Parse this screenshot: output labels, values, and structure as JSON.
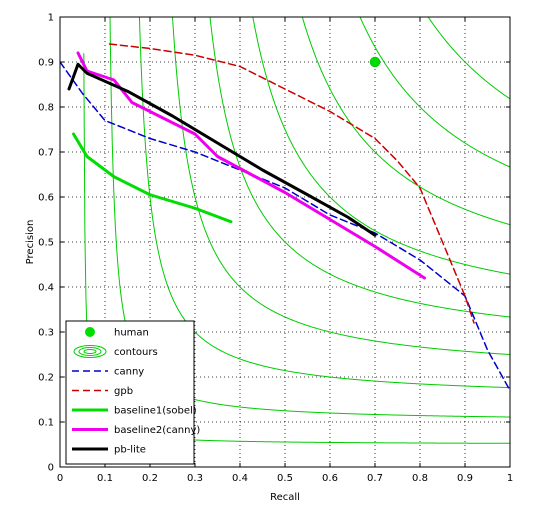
{
  "chart_data": {
    "type": "line",
    "xlabel": "Recall",
    "ylabel": "Precision",
    "xlim": [
      0,
      1
    ],
    "ylim": [
      0,
      1
    ],
    "grid": true,
    "grid_style": "dotted",
    "legend_position": "bottom-left",
    "x_ticks": [
      "0",
      "0.1",
      "0.2",
      "0.3",
      "0.4",
      "0.5",
      "0.6",
      "0.7",
      "0.8",
      "0.9",
      "1"
    ],
    "y_ticks": [
      "0",
      "0.1",
      "0.2",
      "0.3",
      "0.4",
      "0.5",
      "0.6",
      "0.7",
      "0.8",
      "0.9",
      "1"
    ],
    "contours": {
      "color": "#00cc00",
      "f_values": [
        0.1,
        0.2,
        0.3,
        0.4,
        0.5,
        0.6,
        0.7,
        0.8,
        0.9
      ]
    },
    "human": {
      "x": 0.7,
      "y": 0.9,
      "color": "#00dd00"
    },
    "series": [
      {
        "name": "canny",
        "color": "#0000cc",
        "style": "dashed",
        "width": 1.5,
        "points": [
          [
            0.0,
            0.9
          ],
          [
            0.05,
            0.83
          ],
          [
            0.1,
            0.77
          ],
          [
            0.2,
            0.73
          ],
          [
            0.3,
            0.7
          ],
          [
            0.4,
            0.66
          ],
          [
            0.5,
            0.62
          ],
          [
            0.6,
            0.56
          ],
          [
            0.7,
            0.52
          ],
          [
            0.8,
            0.46
          ],
          [
            0.9,
            0.38
          ],
          [
            0.95,
            0.26
          ],
          [
            1.0,
            0.17
          ]
        ]
      },
      {
        "name": "gpb",
        "color": "#cc0000",
        "style": "dashed",
        "width": 1.5,
        "points": [
          [
            0.11,
            0.94
          ],
          [
            0.2,
            0.93
          ],
          [
            0.3,
            0.915
          ],
          [
            0.4,
            0.89
          ],
          [
            0.5,
            0.84
          ],
          [
            0.6,
            0.79
          ],
          [
            0.7,
            0.73
          ],
          [
            0.75,
            0.68
          ],
          [
            0.8,
            0.62
          ],
          [
            0.85,
            0.5
          ],
          [
            0.9,
            0.38
          ],
          [
            0.92,
            0.32
          ]
        ]
      },
      {
        "name": "baseline1(sobel)",
        "color": "#00dd00",
        "style": "solid",
        "width": 3,
        "points": [
          [
            0.03,
            0.74
          ],
          [
            0.06,
            0.69
          ],
          [
            0.12,
            0.645
          ],
          [
            0.2,
            0.605
          ],
          [
            0.3,
            0.575
          ],
          [
            0.38,
            0.545
          ]
        ]
      },
      {
        "name": "baseline2(canny)",
        "color": "#ee00ee",
        "style": "solid",
        "width": 3,
        "points": [
          [
            0.04,
            0.92
          ],
          [
            0.06,
            0.88
          ],
          [
            0.12,
            0.86
          ],
          [
            0.16,
            0.81
          ],
          [
            0.3,
            0.74
          ],
          [
            0.35,
            0.69
          ],
          [
            0.5,
            0.61
          ],
          [
            0.6,
            0.55
          ],
          [
            0.7,
            0.49
          ],
          [
            0.81,
            0.42
          ]
        ]
      },
      {
        "name": "pb-lite",
        "color": "#000000",
        "style": "solid",
        "width": 3,
        "points": [
          [
            0.02,
            0.84
          ],
          [
            0.04,
            0.895
          ],
          [
            0.06,
            0.875
          ],
          [
            0.15,
            0.835
          ],
          [
            0.25,
            0.78
          ],
          [
            0.35,
            0.72
          ],
          [
            0.45,
            0.66
          ],
          [
            0.55,
            0.605
          ],
          [
            0.64,
            0.555
          ],
          [
            0.7,
            0.515
          ]
        ]
      }
    ],
    "legend": [
      {
        "label": "human",
        "kind": "marker",
        "color": "#00dd00"
      },
      {
        "label": "contours",
        "kind": "ellipses",
        "color": "#00cc00"
      },
      {
        "label": "canny",
        "kind": "line",
        "color": "#0000cc",
        "style": "dashed"
      },
      {
        "label": "gpb",
        "kind": "line",
        "color": "#cc0000",
        "style": "dashed"
      },
      {
        "label": "baseline1(sobel)",
        "kind": "line",
        "color": "#00dd00",
        "style": "solid"
      },
      {
        "label": "baseline2(canny)",
        "kind": "line",
        "color": "#ee00ee",
        "style": "solid"
      },
      {
        "label": "pb-lite",
        "kind": "line",
        "color": "#000000",
        "style": "solid"
      }
    ]
  }
}
